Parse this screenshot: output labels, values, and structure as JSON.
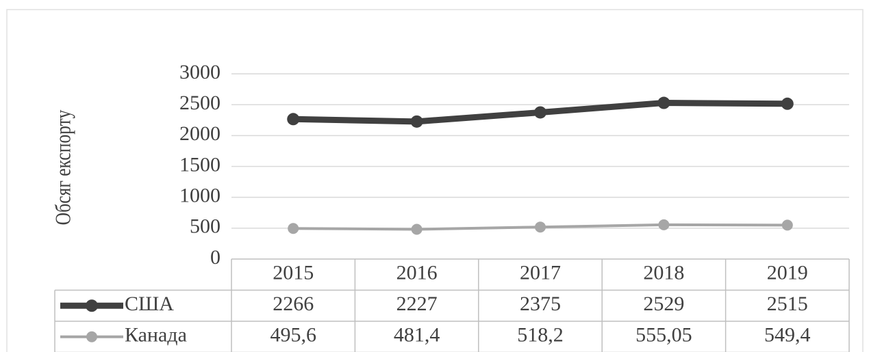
{
  "chart_data": {
    "type": "line",
    "y_label": "Обсяг експорту",
    "categories": [
      "2015",
      "2016",
      "2017",
      "2018",
      "2019"
    ],
    "series": [
      {
        "name": "США",
        "color": "#404040",
        "values": [
          2266,
          2227,
          2375,
          2529,
          2515
        ]
      },
      {
        "name": "Канада",
        "color": "#a6a6a6",
        "values": [
          495.6,
          481.4,
          518.2,
          555.05,
          549.4
        ],
        "value_labels": [
          "495,6",
          "481,4",
          "518,2",
          "555,05",
          "549,4"
        ]
      }
    ],
    "ylim": [
      0,
      3000
    ],
    "yticks": [
      0,
      500,
      1000,
      1500,
      2000,
      2500,
      3000
    ],
    "grid": true
  }
}
